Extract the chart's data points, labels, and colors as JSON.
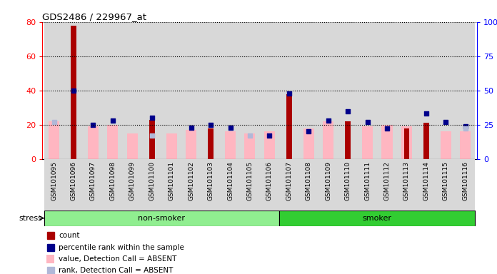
{
  "title": "GDS2486 / 229967_at",
  "samples": [
    "GSM101095",
    "GSM101096",
    "GSM101097",
    "GSM101098",
    "GSM101099",
    "GSM101100",
    "GSM101101",
    "GSM101102",
    "GSM101103",
    "GSM101104",
    "GSM101105",
    "GSM101106",
    "GSM101107",
    "GSM101108",
    "GSM101109",
    "GSM101110",
    "GSM101111",
    "GSM101112",
    "GSM101113",
    "GSM101114",
    "GSM101115",
    "GSM101116"
  ],
  "count": [
    0,
    78,
    0,
    0,
    0,
    23,
    0,
    0,
    18,
    0,
    0,
    0,
    38,
    0,
    0,
    22,
    0,
    0,
    18,
    21,
    0,
    0
  ],
  "percentile_rank": [
    0,
    50,
    25,
    28,
    0,
    30,
    0,
    23,
    25,
    23,
    0,
    17,
    48,
    20,
    28,
    35,
    27,
    22,
    0,
    33,
    27,
    24
  ],
  "value_absent": [
    22,
    0,
    19,
    20,
    15,
    0,
    15,
    17,
    0,
    16,
    15,
    16,
    0,
    18,
    22,
    0,
    19,
    20,
    19,
    0,
    16,
    16
  ],
  "rank_absent": [
    27,
    0,
    0,
    0,
    0,
    17,
    0,
    0,
    0,
    0,
    17,
    0,
    0,
    0,
    0,
    0,
    0,
    0,
    0,
    0,
    0,
    22
  ],
  "ylim_left": [
    0,
    80
  ],
  "ylim_right": [
    0,
    100
  ],
  "yticks_left": [
    0,
    20,
    40,
    60,
    80
  ],
  "yticks_right": [
    0,
    25,
    50,
    75,
    100
  ],
  "ytick_labels_right": [
    "0",
    "25",
    "50",
    "75",
    "100%"
  ],
  "count_color": "#aa0000",
  "percentile_color": "#00008b",
  "value_absent_color": "#ffb6c1",
  "rank_absent_color": "#b0b8d8",
  "col_bg_color": "#d8d8d8",
  "plot_bg_color": "#ffffff",
  "stress_label": "stress"
}
